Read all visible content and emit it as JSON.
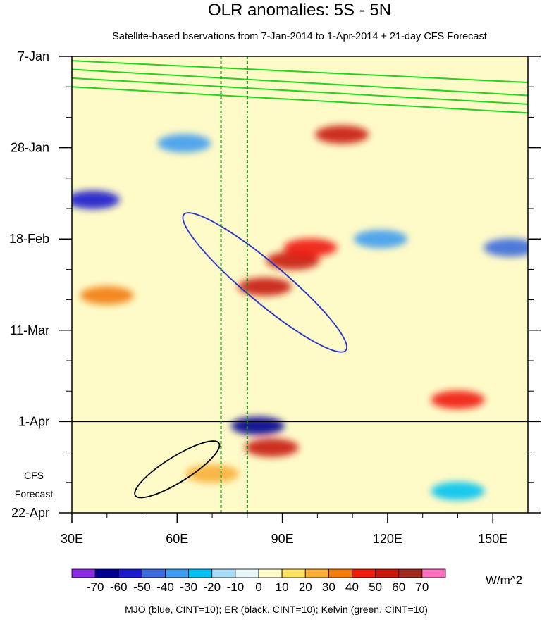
{
  "chart_data": {
    "type": "heatmap",
    "title": "OLR anomalies: 5S - 5N",
    "subtitle": "Satellite-based bservations from 7-Jan-2014 to 1-Apr-2014 + 21-day CFS Forecast",
    "x_range_deg": [
      30,
      160
    ],
    "x_ticks": [
      {
        "value": 30,
        "label": "30E"
      },
      {
        "value": 60,
        "label": "60E"
      },
      {
        "value": 90,
        "label": "90E"
      },
      {
        "value": 120,
        "label": "120E"
      },
      {
        "value": 150,
        "label": "150E"
      }
    ],
    "y_range_days": [
      0,
      105
    ],
    "y_ticks": [
      {
        "day": 0,
        "label": "7-Jan"
      },
      {
        "day": 21,
        "label": "28-Jan"
      },
      {
        "day": 42,
        "label": "18-Feb"
      },
      {
        "day": 63,
        "label": "11-Mar"
      },
      {
        "day": 84,
        "label": "1-Apr"
      },
      {
        "day": 105,
        "label": "22-Apr"
      }
    ],
    "forecast_start_day": 84,
    "forecast_label": [
      "CFS",
      "Forecast"
    ],
    "reference_longitudes": [
      72.5,
      80
    ],
    "colorbar": {
      "unit_label": "W/m^2",
      "levels": [
        -70,
        -60,
        -50,
        -40,
        -30,
        -20,
        -10,
        0,
        10,
        20,
        30,
        40,
        50,
        60,
        70
      ],
      "colors": [
        "#8a2be2",
        "#000090",
        "#1a1acc",
        "#3a6adc",
        "#3f9bf0",
        "#00c2f2",
        "#a9dcf5",
        "#e8f8f8",
        "#fffbc8",
        "#fde265",
        "#f8ae38",
        "#f27c0a",
        "#ee1a0a",
        "#c8140a",
        "#9e2a1e",
        "#ff70c0"
      ]
    },
    "anomaly_features": [
      {
        "lon": 85,
        "day": 53,
        "value": 55
      },
      {
        "lon": 93,
        "day": 47,
        "value": 50
      },
      {
        "lon": 107,
        "day": 18,
        "value": 50
      },
      {
        "lon": 98,
        "day": 44,
        "value": 45
      },
      {
        "lon": 87,
        "day": 90,
        "value": 50
      },
      {
        "lon": 83,
        "day": 85,
        "value": -65
      },
      {
        "lon": 36,
        "day": 33,
        "value": -55
      },
      {
        "lon": 62,
        "day": 20,
        "value": -40
      },
      {
        "lon": 155,
        "day": 44,
        "value": -50
      },
      {
        "lon": 140,
        "day": 79,
        "value": 45
      },
      {
        "lon": 40,
        "day": 55,
        "value": 30
      },
      {
        "lon": 118,
        "day": 42,
        "value": -35
      },
      {
        "lon": 70,
        "day": 96,
        "value": 20
      },
      {
        "lon": 140,
        "day": 100,
        "value": -30
      }
    ],
    "contour_legend": "MJO (blue, CINT=10); ER (black, CINT=10); Kelvin (green, CINT=10)",
    "series": [
      {
        "name": "MJO",
        "color": "#2230c8",
        "cint": 10
      },
      {
        "name": "ER",
        "color": "#000000",
        "cint": 10
      },
      {
        "name": "Kelvin",
        "color": "#1ed81e",
        "cint": 10
      }
    ]
  }
}
